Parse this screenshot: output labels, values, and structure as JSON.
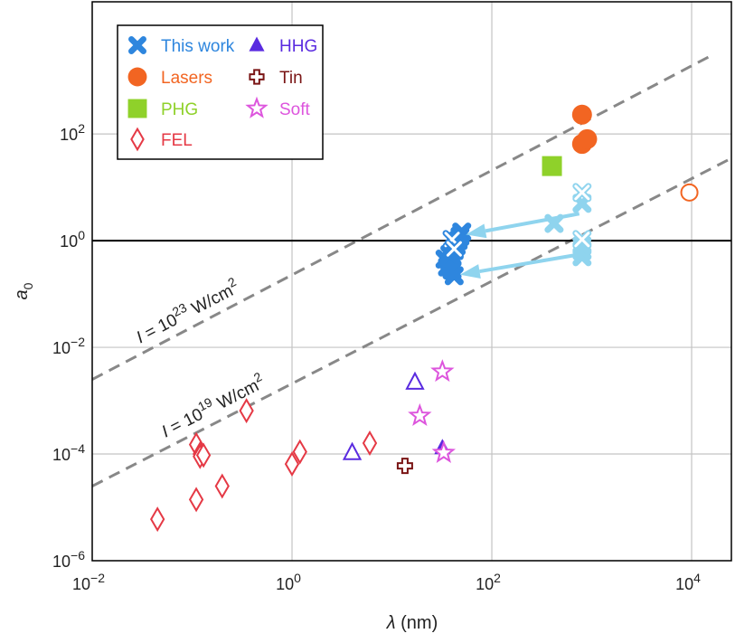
{
  "chart_data": {
    "type": "scatter",
    "xlabel": "λ (nm)",
    "ylabel": "a0",
    "xscale": "log",
    "yscale": "log",
    "xlim": [
      0.01,
      25000
    ],
    "ylim": [
      1e-06,
      30000
    ],
    "x_ticks": [
      "10^-2",
      "10^0",
      "10^2",
      "10^4"
    ],
    "y_ticks": [
      "10^-6",
      "10^-4",
      "10^-2",
      "10^0",
      "10^2"
    ],
    "grid": true,
    "legend_position": "top-left",
    "reference_lines": [
      {
        "label": "I = 10^23 W/cm^2",
        "style": "dashed",
        "color": "#888888",
        "points": [
          [
            0.01,
            0.0025
          ],
          [
            16000,
            3000
          ]
        ]
      },
      {
        "label": "I = 10^19 W/cm^2",
        "style": "dashed",
        "color": "#888888",
        "points": [
          [
            0.01,
            2.5e-05
          ],
          [
            25000,
            35
          ]
        ]
      },
      {
        "label": "",
        "style": "solid",
        "color": "#000000",
        "y": 1
      }
    ],
    "arrows": [
      {
        "from": [
          750,
          3.2
        ],
        "to": [
          55,
          1.3
        ]
      },
      {
        "from": [
          750,
          0.55
        ],
        "to": [
          48,
          0.23
        ]
      }
    ],
    "series": [
      {
        "name": "This work",
        "marker": "x",
        "color": "#2e86de",
        "points": [
          [
            38,
            0.4
          ],
          [
            40,
            0.5
          ],
          [
            42,
            0.65
          ],
          [
            44,
            0.8
          ],
          [
            46,
            1.0
          ],
          [
            48,
            1.2
          ],
          [
            50,
            1.45
          ],
          [
            36,
            0.32
          ],
          [
            40,
            0.28
          ],
          [
            42,
            0.22
          ],
          [
            34,
            0.45
          ],
          [
            38,
            0.55
          ]
        ]
      },
      {
        "name": "",
        "marker": "x-open",
        "color": "#2e86de",
        "points": [
          [
            40,
            1.05
          ],
          [
            42,
            0.7
          ]
        ]
      },
      {
        "name": "",
        "marker": "x",
        "color": "#8fd4ee",
        "points": [
          [
            420,
            2.1
          ],
          [
            800,
            5.0
          ],
          [
            800,
            0.5
          ],
          [
            800,
            0.65
          ],
          [
            800,
            0.8
          ]
        ]
      },
      {
        "name": "",
        "marker": "x-open",
        "color": "#8fd4ee",
        "points": [
          [
            800,
            8.0
          ],
          [
            800,
            1.05
          ]
        ]
      },
      {
        "name": "Lasers",
        "marker": "circle",
        "color": "#f26522",
        "points": [
          [
            800,
            230
          ],
          [
            800,
            65
          ],
          [
            900,
            80
          ]
        ]
      },
      {
        "name": "",
        "marker": "circle-open",
        "color": "#f26522",
        "points": [
          [
            9500,
            8.0
          ]
        ]
      },
      {
        "name": "PHG",
        "marker": "square",
        "color": "#8fd12a",
        "points": [
          [
            400,
            25
          ]
        ]
      },
      {
        "name": "FEL",
        "marker": "diamond-open",
        "color": "#e53945",
        "points": [
          [
            0.045,
            6e-06
          ],
          [
            0.11,
            1.4e-05
          ],
          [
            0.11,
            0.00015
          ],
          [
            0.12,
            0.0001
          ],
          [
            0.12,
            9e-05
          ],
          [
            0.13,
            9.5e-05
          ],
          [
            0.2,
            2.5e-05
          ],
          [
            0.35,
            0.00065
          ],
          [
            1.0,
            6.5e-05
          ],
          [
            1.2,
            0.00011
          ],
          [
            6.0,
            0.00016
          ]
        ]
      },
      {
        "name": "HHG",
        "marker": "triangle",
        "color": "#5a2be0",
        "points": [
          [
            32,
            0.00013
          ]
        ]
      },
      {
        "name": "",
        "marker": "triangle-open",
        "color": "#5a2be0",
        "points": [
          [
            4,
            0.000105
          ],
          [
            17,
            0.0022
          ]
        ]
      },
      {
        "name": "Tin",
        "marker": "cross-open",
        "color": "#7a1515",
        "points": [
          [
            13.5,
            6e-05
          ]
        ]
      },
      {
        "name": "Soft",
        "marker": "star-open",
        "color": "#dd55dd",
        "points": [
          [
            32,
            0.0035
          ],
          [
            19,
            0.00052
          ],
          [
            33,
            0.000105
          ]
        ]
      }
    ],
    "legend": [
      {
        "label": "This work",
        "marker": "x",
        "color": "#2e86de"
      },
      {
        "label": "HHG",
        "marker": "triangle",
        "color": "#5a2be0"
      },
      {
        "label": "Lasers",
        "marker": "circle",
        "color": "#f26522"
      },
      {
        "label": "Tin",
        "marker": "cross-open",
        "color": "#7a1515"
      },
      {
        "label": "PHG",
        "marker": "square",
        "color": "#8fd12a"
      },
      {
        "label": "Soft",
        "marker": "star-open",
        "color": "#dd55dd"
      },
      {
        "label": "FEL",
        "marker": "diamond-open",
        "color": "#e53945"
      }
    ]
  }
}
